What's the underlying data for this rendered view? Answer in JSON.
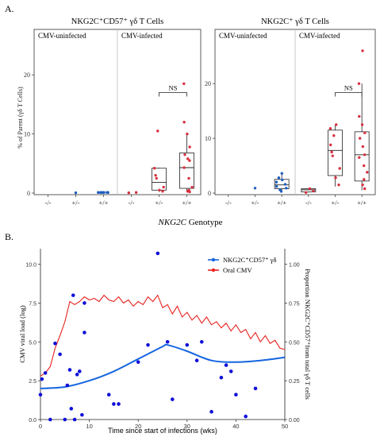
{
  "panel_a": {
    "letter": "A.",
    "xlabel_italic": "NKG2C",
    "xlabel_rest": " Genotype",
    "ylabel": "% of Parent (γδ T Cells)"
  },
  "panel_b": {
    "letter": "B."
  },
  "colors": {
    "point_red": "#d7303f",
    "point_blue": "#1f5fbf",
    "line_red": "#e8231f",
    "line_blue": "#1565e0",
    "dot_blue": "#1010d8"
  },
  "chart_data": [
    {
      "type": "scatter",
      "subtype": "boxplot-with-points",
      "title": "NKG2C⁺CD57⁺ γδ T Cells",
      "groups": [
        "CMV-uninfected",
        "CMV-infected"
      ],
      "categories": [
        "-/-",
        "+/-",
        "+/+",
        "-/-",
        "+/-",
        "+/+"
      ],
      "ylim": [
        0,
        25
      ],
      "yticks": [
        0,
        10,
        20
      ],
      "annotation": "NS",
      "points": [
        [],
        [
          0.05
        ],
        [
          0.1,
          0.1,
          0.1,
          0.1,
          0.1,
          0.1,
          0.1,
          0.1
        ],
        [
          0.05,
          0.1
        ],
        [
          0.3,
          0.5,
          1.0,
          2.5,
          3.0,
          4.2,
          10.5
        ],
        [
          0.2,
          0.3,
          0.5,
          1.0,
          2.5,
          4.3,
          5.5,
          5.8,
          6.5,
          7.8,
          10.0,
          12.0,
          18.5
        ]
      ],
      "boxes": [
        null,
        null,
        null,
        null,
        {
          "min": 0.2,
          "q1": 0.5,
          "median": 1.8,
          "q3": 4.2,
          "max": 4.3
        },
        {
          "min": 0.2,
          "q1": 0.8,
          "median": 4.3,
          "q3": 6.8,
          "max": 10.0
        }
      ]
    },
    {
      "type": "scatter",
      "subtype": "boxplot-with-points",
      "title": "NKG2C⁺ γδ T Cells",
      "groups": [
        "CMV-uninfected",
        "CMV-infected"
      ],
      "categories": [
        "-/-",
        "+/-",
        "+/+",
        "-/-",
        "+/-",
        "+/+"
      ],
      "ylim": [
        0,
        27
      ],
      "yticks": [
        0,
        10,
        20
      ],
      "annotation": "NS",
      "points": [
        [],
        [
          0.9
        ],
        [
          0.3,
          0.6,
          0.9,
          1.2,
          1.6,
          2.0,
          2.4,
          2.8,
          3.6
        ],
        [
          0.1,
          0.4,
          0.8
        ],
        [
          1.5,
          2.8,
          4.5,
          6.8,
          7.5,
          8.8,
          10.5,
          11.8,
          12.5
        ],
        [
          0.8,
          1.5,
          2.5,
          3.8,
          5.0,
          6.5,
          7.0,
          8.5,
          10.0,
          11.0,
          12.5,
          14.0,
          20.0,
          26.0
        ]
      ],
      "boxes": [
        null,
        null,
        {
          "min": 0.2,
          "q1": 0.8,
          "median": 1.5,
          "q3": 2.5,
          "max": 3.6
        },
        {
          "min": 0.1,
          "q1": 0.2,
          "median": 0.6,
          "q3": 0.8,
          "max": 0.8
        },
        {
          "min": 1.2,
          "q1": 3.2,
          "median": 7.8,
          "q3": 11.5,
          "max": 12.5
        },
        {
          "min": 0.5,
          "q1": 2.2,
          "median": 7.0,
          "q3": 11.2,
          "max": 20.0
        }
      ]
    },
    {
      "type": "line",
      "xlabel": "Time since start of infections (wks)",
      "ylabel_left": "CMV viral load (log)",
      "ylabel_right": "Proportion NKG2C⁺CD57⁺from total γδ T cells",
      "xlim": [
        0,
        50
      ],
      "ylim_left": [
        0,
        11
      ],
      "ylim_right": [
        0,
        1.1
      ],
      "xticks": [
        0,
        10,
        20,
        30,
        40,
        50
      ],
      "yticks_left": [
        "0.0",
        "2.5",
        "5.0",
        "7.5",
        "10.0"
      ],
      "yticks_right": [
        "0.00",
        "0.25",
        "0.50",
        "0.75",
        "1.00"
      ],
      "legend": [
        {
          "label": "NKG2C⁺CD57⁺ γδ",
          "color": "#1565e0"
        },
        {
          "label": "Oral CMV",
          "color": "#e8231f"
        }
      ],
      "legend_position": "top-right",
      "series": [
        {
          "name": "Oral CMV",
          "axis": "left",
          "x": [
            0,
            1,
            2,
            3,
            4,
            5,
            6,
            7,
            8,
            9,
            10,
            11,
            12,
            13,
            14,
            15,
            16,
            17,
            18,
            19,
            20,
            21,
            22,
            23,
            24,
            25,
            26,
            27,
            28,
            29,
            30,
            31,
            32,
            33,
            34,
            35,
            36,
            37,
            38,
            39,
            40,
            41,
            42,
            43,
            44,
            45,
            46,
            47,
            48,
            49,
            50
          ],
          "y": [
            2.8,
            3.0,
            3.4,
            4.6,
            5.4,
            6.3,
            7.6,
            7.4,
            7.6,
            7.9,
            7.7,
            7.8,
            7.6,
            8.0,
            7.7,
            7.6,
            7.9,
            7.5,
            7.7,
            7.3,
            7.6,
            7.4,
            7.9,
            7.6,
            8.0,
            7.2,
            7.4,
            6.8,
            7.3,
            6.6,
            6.9,
            6.4,
            6.7,
            6.2,
            6.6,
            6.1,
            6.3,
            5.9,
            6.2,
            5.7,
            6.1,
            5.6,
            5.8,
            5.2,
            5.6,
            5.0,
            5.4,
            4.9,
            5.1,
            4.6,
            4.5
          ]
        },
        {
          "name": "NKG2C⁺CD57⁺ γδ",
          "axis": "right",
          "x": [
            0,
            5,
            10,
            15,
            20,
            25,
            26,
            30,
            35,
            40,
            45,
            50
          ],
          "y": [
            0.2,
            0.21,
            0.25,
            0.31,
            0.39,
            0.47,
            0.48,
            0.44,
            0.38,
            0.37,
            0.38,
            0.4
          ]
        }
      ],
      "points": {
        "axis": "right",
        "x": [
          0,
          0.3,
          1,
          2,
          3,
          4,
          5,
          5.5,
          6,
          6.3,
          6.7,
          7,
          7.5,
          8,
          8.5,
          9,
          9,
          14,
          15,
          16,
          20,
          22,
          24,
          26,
          27,
          30,
          32,
          33,
          35,
          37,
          38,
          39,
          40,
          42,
          44
        ],
        "y": [
          0.16,
          0.26,
          0.3,
          0.0,
          0.49,
          0.42,
          0.0,
          0.22,
          0.32,
          0.07,
          0.8,
          0.0,
          0.29,
          0.31,
          0.03,
          0.75,
          0.56,
          0.16,
          0.1,
          0.1,
          0.37,
          0.48,
          1.07,
          0.5,
          0.13,
          0.48,
          0.38,
          0.5,
          0.05,
          0.27,
          0.35,
          0.31,
          0.16,
          0.02,
          0.2
        ]
      }
    }
  ]
}
